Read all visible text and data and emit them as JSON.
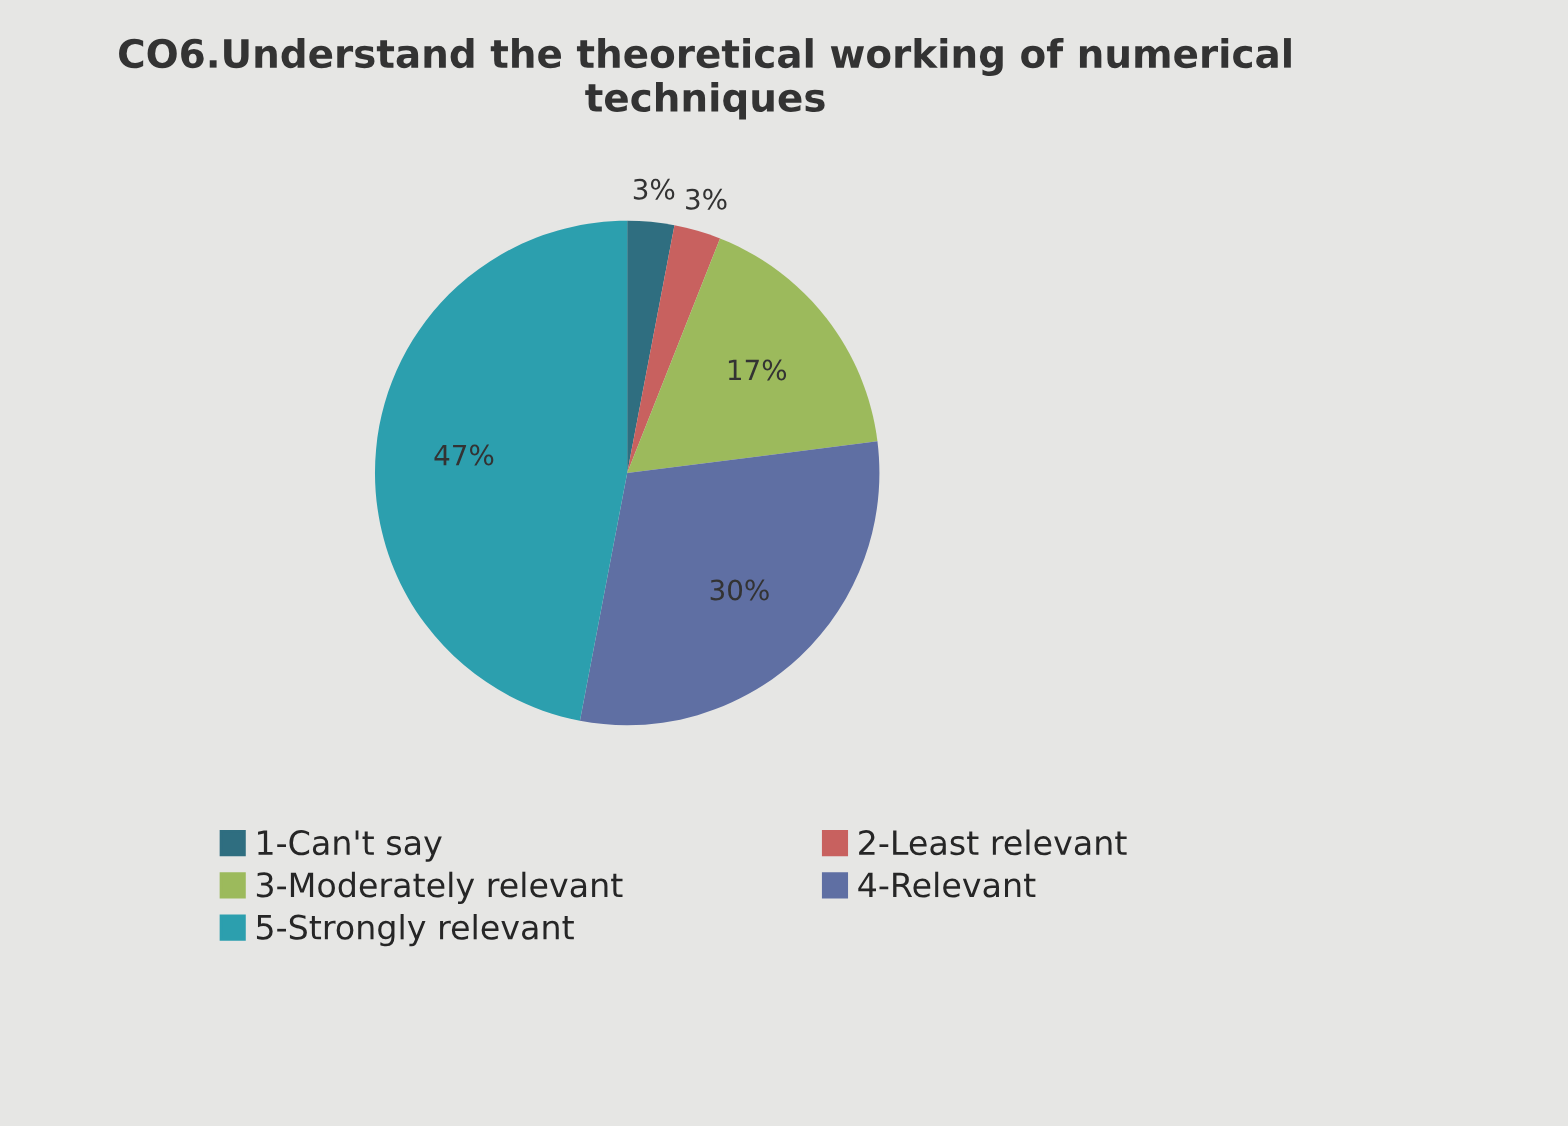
{
  "chart_data": {
    "type": "pie",
    "title": "CO6.Understand the theoretical working of numerical techniques",
    "categories": [
      "1-Can't say",
      "2-Least relevant",
      "3-Moderately relevant",
      "4-Relevant",
      "5-Strongly relevant"
    ],
    "values": [
      3,
      3,
      17,
      30,
      47
    ],
    "colors": [
      "#2f6e80",
      "#c8615f",
      "#9cba5c",
      "#5f6fa3",
      "#2c9fae"
    ],
    "value_labels": [
      "3%",
      "3%",
      "17%",
      "30%",
      "47%"
    ],
    "legend": "bottom"
  }
}
